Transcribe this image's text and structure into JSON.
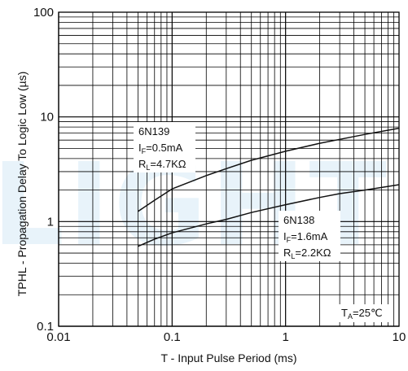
{
  "chart_data": {
    "type": "line",
    "xscale": "log",
    "yscale": "log",
    "xlim": [
      0.01,
      10
    ],
    "ylim": [
      0.1,
      100
    ],
    "xticks": [
      "0.01",
      "0.1",
      "1",
      "10"
    ],
    "yticks": [
      "0.1",
      "1",
      "10",
      "100"
    ],
    "xlabel": "T - Input Pulse Period (ms)",
    "ylabel": "TPHL - Propagation Delay To Logic Low (µs)",
    "grid": true,
    "watermark": "LIGHT",
    "series": [
      {
        "name": "6N139",
        "line1": "6N139",
        "line2_main": "I",
        "line2_sub": "F",
        "line2_rest": "=0.5mA",
        "line3_main": "R",
        "line3_sub": "L",
        "line3_rest": "=4.7KΩ",
        "x": [
          0.05,
          0.07,
          0.1,
          0.2,
          0.3,
          0.5,
          1,
          2,
          3,
          5,
          10
        ],
        "y": [
          1.25,
          1.6,
          2.05,
          2.75,
          3.2,
          3.85,
          4.7,
          5.6,
          6.1,
          6.8,
          7.8
        ]
      },
      {
        "name": "6N138",
        "line1": "6N138",
        "line2_main": "I",
        "line2_sub": "F",
        "line2_rest": "=1.6mA",
        "line3_main": "R",
        "line3_sub": "L",
        "line3_rest": "=2.2KΩ",
        "x": [
          0.05,
          0.07,
          0.1,
          0.2,
          0.3,
          0.5,
          1,
          2,
          3,
          5,
          10
        ],
        "y": [
          0.58,
          0.68,
          0.78,
          0.95,
          1.05,
          1.22,
          1.45,
          1.7,
          1.85,
          2.0,
          2.25
        ]
      }
    ],
    "condition": {
      "main": "T",
      "sub": "A",
      "rest": "=25℃"
    }
  }
}
